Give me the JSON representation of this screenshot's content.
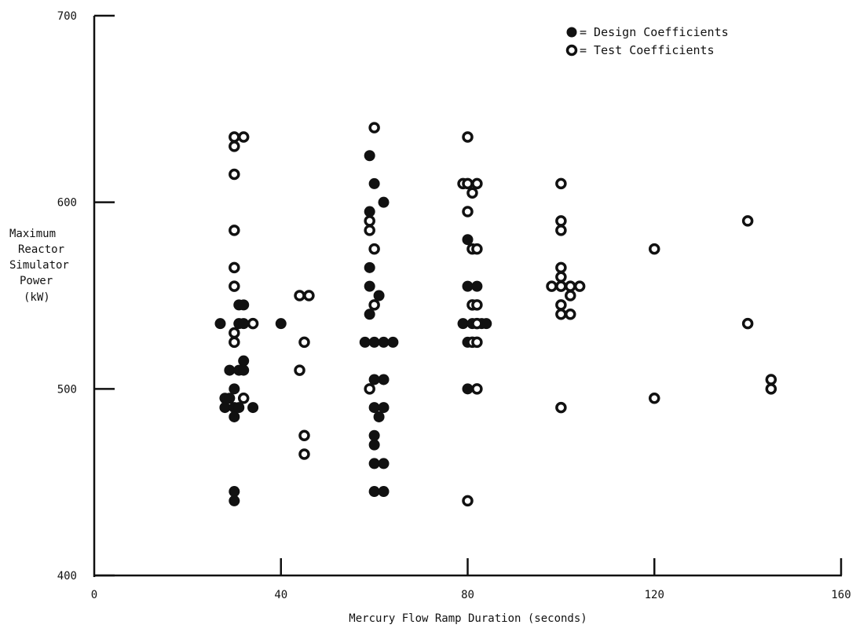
{
  "chart_data": {
    "type": "scatter",
    "title": "",
    "xlabel": "Mercury Flow Ramp Duration (seconds)",
    "ylabel_lines": [
      "Maximum",
      "Reactor",
      "Simulator",
      "Power",
      "(kW)"
    ],
    "xlim": [
      0,
      160
    ],
    "ylim": [
      400,
      700
    ],
    "x_ticks": [
      0,
      40,
      80,
      120,
      160
    ],
    "x_tick_labels": [
      "0",
      "40",
      "80",
      "120",
      "160"
    ],
    "y_ticks": [
      400,
      500,
      600,
      700
    ],
    "y_tick_labels": [
      "400",
      "500",
      "600",
      "700"
    ],
    "grid": false,
    "legend_position": "top-right",
    "legend": [
      {
        "marker": "filled",
        "label": "= Design Coefficients"
      },
      {
        "marker": "open",
        "label": "= Test Coefficients"
      }
    ],
    "series": [
      {
        "name": "Design Coefficients",
        "marker": "filled",
        "points": [
          [
            27,
            535
          ],
          [
            28,
            495
          ],
          [
            28,
            490
          ],
          [
            29,
            510
          ],
          [
            29,
            495
          ],
          [
            30,
            500
          ],
          [
            30,
            490
          ],
          [
            30,
            485
          ],
          [
            30,
            445
          ],
          [
            30,
            440
          ],
          [
            31,
            545
          ],
          [
            31,
            535
          ],
          [
            31,
            510
          ],
          [
            31,
            490
          ],
          [
            32,
            545
          ],
          [
            32,
            515
          ],
          [
            32,
            510
          ],
          [
            32,
            535
          ],
          [
            34,
            490
          ],
          [
            40,
            535
          ],
          [
            59,
            625
          ],
          [
            60,
            610
          ],
          [
            59,
            595
          ],
          [
            59,
            565
          ],
          [
            59,
            555
          ],
          [
            59,
            540
          ],
          [
            60,
            470
          ],
          [
            60,
            475
          ],
          [
            60,
            460
          ],
          [
            60,
            445
          ],
          [
            58,
            525
          ],
          [
            60,
            525
          ],
          [
            62,
            525
          ],
          [
            64,
            525
          ],
          [
            61,
            550
          ],
          [
            62,
            505
          ],
          [
            60,
            505
          ],
          [
            60,
            490
          ],
          [
            62,
            490
          ],
          [
            61,
            485
          ],
          [
            62,
            460
          ],
          [
            62,
            445
          ],
          [
            62,
            600
          ],
          [
            80,
            580
          ],
          [
            80,
            555
          ],
          [
            82,
            555
          ],
          [
            79,
            535
          ],
          [
            81,
            535
          ],
          [
            83,
            535
          ],
          [
            84,
            535
          ],
          [
            80,
            525
          ],
          [
            80,
            500
          ]
        ]
      },
      {
        "name": "Test Coefficients",
        "marker": "open",
        "points": [
          [
            30,
            635
          ],
          [
            32,
            635
          ],
          [
            30,
            630
          ],
          [
            30,
            615
          ],
          [
            30,
            585
          ],
          [
            30,
            565
          ],
          [
            30,
            555
          ],
          [
            30,
            530
          ],
          [
            30,
            525
          ],
          [
            32,
            495
          ],
          [
            34,
            535
          ],
          [
            44,
            550
          ],
          [
            46,
            550
          ],
          [
            45,
            525
          ],
          [
            44,
            510
          ],
          [
            45,
            475
          ],
          [
            45,
            465
          ],
          [
            60,
            640
          ],
          [
            59,
            590
          ],
          [
            59,
            585
          ],
          [
            60,
            575
          ],
          [
            60,
            545
          ],
          [
            59,
            500
          ],
          [
            80,
            635
          ],
          [
            79,
            610
          ],
          [
            80,
            610
          ],
          [
            82,
            610
          ],
          [
            81,
            605
          ],
          [
            80,
            595
          ],
          [
            81,
            575
          ],
          [
            82,
            575
          ],
          [
            81,
            545
          ],
          [
            82,
            545
          ],
          [
            81,
            525
          ],
          [
            82,
            525
          ],
          [
            82,
            535
          ],
          [
            82,
            500
          ],
          [
            80,
            440
          ],
          [
            100,
            610
          ],
          [
            100,
            590
          ],
          [
            100,
            585
          ],
          [
            100,
            565
          ],
          [
            100,
            560
          ],
          [
            98,
            555
          ],
          [
            100,
            555
          ],
          [
            102,
            555
          ],
          [
            104,
            555
          ],
          [
            100,
            545
          ],
          [
            102,
            550
          ],
          [
            100,
            540
          ],
          [
            102,
            540
          ],
          [
            100,
            490
          ],
          [
            120,
            575
          ],
          [
            120,
            495
          ],
          [
            140,
            590
          ],
          [
            140,
            535
          ],
          [
            145,
            505
          ],
          [
            145,
            500
          ]
        ]
      }
    ]
  }
}
